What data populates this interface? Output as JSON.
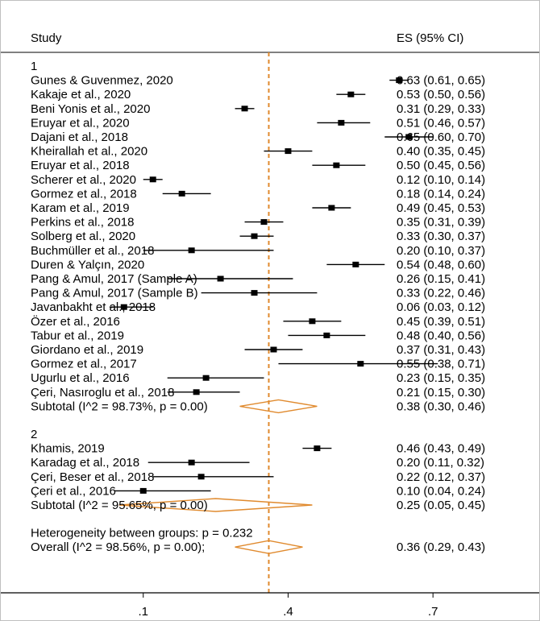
{
  "header": {
    "study_label": "Study",
    "es_label": "ES (95% CI)"
  },
  "axis": {
    "ticks": [
      0.1,
      0.4,
      0.7
    ],
    "tick_labels": [
      ".1",
      ".4",
      ".7"
    ],
    "xlim": [
      -0.195,
      0.92
    ],
    "overall_es": 0.36
  },
  "colors": {
    "reference_line": "#e08a2e",
    "diamond": "#e08a2e",
    "marker": "#000000",
    "ci_line": "#000000"
  },
  "chart_data": {
    "type": "forest",
    "groups": [
      {
        "label": "1",
        "studies": [
          {
            "name": "Gunes & Guvenmez, 2020",
            "es": 0.63,
            "lo": 0.61,
            "hi": 0.65,
            "text": "0.63 (0.61, 0.65)"
          },
          {
            "name": "Kakaje et al., 2020",
            "es": 0.53,
            "lo": 0.5,
            "hi": 0.56,
            "text": "0.53 (0.50, 0.56)"
          },
          {
            "name": "Beni Yonis et al., 2020",
            "es": 0.31,
            "lo": 0.29,
            "hi": 0.33,
            "text": "0.31 (0.29, 0.33)"
          },
          {
            "name": "Eruyar et al., 2020",
            "es": 0.51,
            "lo": 0.46,
            "hi": 0.57,
            "text": "0.51 (0.46, 0.57)"
          },
          {
            "name": "Dajani et al., 2018",
            "es": 0.65,
            "lo": 0.6,
            "hi": 0.7,
            "text": "0.65 (0.60, 0.70)"
          },
          {
            "name": "Kheirallah et al., 2020",
            "es": 0.4,
            "lo": 0.35,
            "hi": 0.45,
            "text": "0.40 (0.35, 0.45)"
          },
          {
            "name": "Eruyar et al., 2018",
            "es": 0.5,
            "lo": 0.45,
            "hi": 0.56,
            "text": "0.50 (0.45, 0.56)"
          },
          {
            "name": "Scherer et al., 2020",
            "es": 0.12,
            "lo": 0.1,
            "hi": 0.14,
            "text": "0.12 (0.10, 0.14)"
          },
          {
            "name": "Gormez et al., 2018",
            "es": 0.18,
            "lo": 0.14,
            "hi": 0.24,
            "text": "0.18 (0.14, 0.24)"
          },
          {
            "name": "Karam et al., 2019",
            "es": 0.49,
            "lo": 0.45,
            "hi": 0.53,
            "text": "0.49 (0.45, 0.53)"
          },
          {
            "name": "Perkins et al., 2018",
            "es": 0.35,
            "lo": 0.31,
            "hi": 0.39,
            "text": "0.35 (0.31, 0.39)"
          },
          {
            "name": "Solberg et al., 2020",
            "es": 0.33,
            "lo": 0.3,
            "hi": 0.37,
            "text": "0.33 (0.30, 0.37)"
          },
          {
            "name": "Buchmüller et al., 2018",
            "es": 0.2,
            "lo": 0.1,
            "hi": 0.37,
            "text": "0.20 (0.10, 0.37)"
          },
          {
            "name": "Duren & Yalçın, 2020",
            "es": 0.54,
            "lo": 0.48,
            "hi": 0.6,
            "text": "0.54 (0.48, 0.60)"
          },
          {
            "name": "Pang & Amul, 2017 (Sample A)",
            "es": 0.26,
            "lo": 0.15,
            "hi": 0.41,
            "text": "0.26 (0.15, 0.41)"
          },
          {
            "name": "Pang & Amul, 2017 (Sample B)",
            "es": 0.33,
            "lo": 0.22,
            "hi": 0.46,
            "text": "0.33 (0.22, 0.46)"
          },
          {
            "name": "Javanbakht et al., 2018",
            "es": 0.06,
            "lo": 0.03,
            "hi": 0.12,
            "text": "0.06 (0.03, 0.12)"
          },
          {
            "name": "Özer et al., 2016",
            "es": 0.45,
            "lo": 0.39,
            "hi": 0.51,
            "text": "0.45 (0.39, 0.51)"
          },
          {
            "name": "Tabur et al., 2019",
            "es": 0.48,
            "lo": 0.4,
            "hi": 0.56,
            "text": "0.48 (0.40, 0.56)"
          },
          {
            "name": "Giordano et al., 2019",
            "es": 0.37,
            "lo": 0.31,
            "hi": 0.43,
            "text": "0.37 (0.31, 0.43)"
          },
          {
            "name": "Gormez et al., 2017",
            "es": 0.55,
            "lo": 0.38,
            "hi": 0.71,
            "text": "0.55 (0.38, 0.71)"
          },
          {
            "name": "Ugurlu et al., 2016",
            "es": 0.23,
            "lo": 0.15,
            "hi": 0.35,
            "text": "0.23 (0.15, 0.35)"
          },
          {
            "name": "Çeri, Nasıroglu et al., 2018",
            "es": 0.21,
            "lo": 0.15,
            "hi": 0.3,
            "text": "0.21 (0.15, 0.30)"
          }
        ],
        "subtotal": {
          "label": "Subtotal  (I^2 = 98.73%, p = 0.00)",
          "es": 0.38,
          "lo": 0.3,
          "hi": 0.46,
          "text": "0.38 (0.30, 0.46)"
        }
      },
      {
        "label": "2",
        "studies": [
          {
            "name": "Khamis, 2019",
            "es": 0.46,
            "lo": 0.43,
            "hi": 0.49,
            "text": "0.46 (0.43, 0.49)"
          },
          {
            "name": "Karadag et al., 2018",
            "es": 0.2,
            "lo": 0.11,
            "hi": 0.32,
            "text": "0.20 (0.11, 0.32)"
          },
          {
            "name": "Çeri, Beser et al., 2018",
            "es": 0.22,
            "lo": 0.12,
            "hi": 0.37,
            "text": "0.22 (0.12, 0.37)"
          },
          {
            "name": "Çeri et al., 2016",
            "es": 0.1,
            "lo": 0.04,
            "hi": 0.24,
            "text": "0.10 (0.04, 0.24)"
          }
        ],
        "subtotal": {
          "label": "Subtotal  (I^2 = 95.65%, p = 0.00)",
          "es": 0.25,
          "lo": 0.05,
          "hi": 0.45,
          "text": "0.25 (0.05, 0.45)"
        }
      }
    ],
    "heterogeneity": "Heterogeneity between groups: p = 0.232",
    "overall": {
      "label": "Overall  (I^2 = 98.56%, p = 0.00);",
      "es": 0.36,
      "lo": 0.29,
      "hi": 0.43,
      "text": "0.36 (0.29, 0.43)"
    }
  }
}
